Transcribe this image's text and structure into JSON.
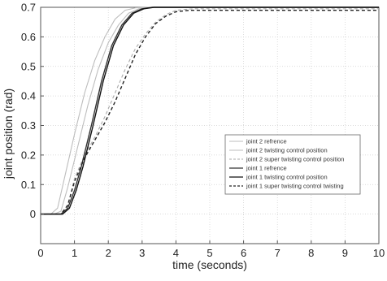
{
  "chart_data": {
    "type": "line",
    "title": "",
    "xlabel": "time (seconds)",
    "ylabel": "joint position (rad)",
    "xlim": [
      0,
      10
    ],
    "ylim": [
      -0.1,
      0.7
    ],
    "xticks": [
      "0",
      "1",
      "2",
      "3",
      "4",
      "5",
      "6",
      "7",
      "8",
      "9",
      "10"
    ],
    "yticks": [
      "0",
      "0.1",
      "0.2",
      "0.3",
      "0.4",
      "0.5",
      "0.6",
      "0.7"
    ],
    "grid": true,
    "legend_position": "center-right",
    "series": [
      {
        "name": "joint 2 refrence",
        "color": "#bdbdbd",
        "dash": "solid",
        "x": [
          0,
          0.3,
          0.5,
          0.7,
          1.0,
          1.3,
          1.6,
          1.9,
          2.2,
          2.5,
          2.8,
          3.2,
          3.6,
          4.0,
          6.0,
          10.0
        ],
        "y": [
          0,
          0,
          0.02,
          0.12,
          0.27,
          0.41,
          0.52,
          0.6,
          0.66,
          0.69,
          0.698,
          0.7,
          0.7,
          0.7,
          0.7,
          0.7
        ]
      },
      {
        "name": "joint 2 twisting control position",
        "color": "#bdbdbd",
        "dash": "solid",
        "x": [
          0,
          0.4,
          0.6,
          0.8,
          1.1,
          1.4,
          1.7,
          2.0,
          2.3,
          2.6,
          2.9,
          3.3,
          3.7,
          4.2,
          6.0,
          10.0
        ],
        "y": [
          0,
          0,
          0.01,
          0.09,
          0.23,
          0.37,
          0.49,
          0.58,
          0.64,
          0.68,
          0.695,
          0.7,
          0.7,
          0.7,
          0.7,
          0.7
        ]
      },
      {
        "name": "joint 2 super twisting control position",
        "color": "#aaaaaa",
        "dash": "dashed",
        "x": [
          0,
          0.6,
          0.8,
          1.0,
          1.3,
          1.6,
          1.9,
          2.2,
          2.5,
          2.8,
          3.1,
          3.4,
          3.7,
          4.0,
          4.5,
          5.0,
          6.0,
          10.0
        ],
        "y": [
          0,
          0,
          0.03,
          0.12,
          0.2,
          0.26,
          0.33,
          0.41,
          0.49,
          0.56,
          0.61,
          0.65,
          0.675,
          0.69,
          0.695,
          0.695,
          0.695,
          0.695
        ]
      },
      {
        "name": "joint 1 refrence",
        "color": "#333333",
        "dash": "solid",
        "x": [
          0,
          0.6,
          0.8,
          1.0,
          1.2,
          1.5,
          1.8,
          2.1,
          2.4,
          2.7,
          3.0,
          3.3,
          3.6,
          4.0,
          6.0,
          10.0
        ],
        "y": [
          0,
          0,
          0.02,
          0.08,
          0.16,
          0.3,
          0.45,
          0.57,
          0.64,
          0.68,
          0.695,
          0.7,
          0.7,
          0.7,
          0.7,
          0.7
        ]
      },
      {
        "name": "joint 1 twisting control position",
        "color": "#111111",
        "dash": "solid",
        "x": [
          0,
          0.65,
          0.85,
          1.05,
          1.25,
          1.55,
          1.85,
          2.15,
          2.45,
          2.75,
          3.05,
          3.35,
          3.65,
          4.05,
          6.0,
          10.0
        ],
        "y": [
          0,
          0,
          0.02,
          0.08,
          0.16,
          0.3,
          0.45,
          0.57,
          0.64,
          0.68,
          0.695,
          0.7,
          0.7,
          0.7,
          0.7,
          0.7
        ]
      },
      {
        "name": "joint 1 super twisting control twisting",
        "color": "#222222",
        "dash": "dashed",
        "x": [
          0,
          0.6,
          0.8,
          1.0,
          1.3,
          1.6,
          1.9,
          2.2,
          2.5,
          2.8,
          3.1,
          3.4,
          3.7,
          4.0,
          4.4,
          5.0,
          6.0,
          10.0
        ],
        "y": [
          0,
          0,
          0.03,
          0.11,
          0.19,
          0.25,
          0.31,
          0.38,
          0.46,
          0.54,
          0.6,
          0.645,
          0.67,
          0.685,
          0.69,
          0.69,
          0.69,
          0.69
        ]
      }
    ]
  }
}
